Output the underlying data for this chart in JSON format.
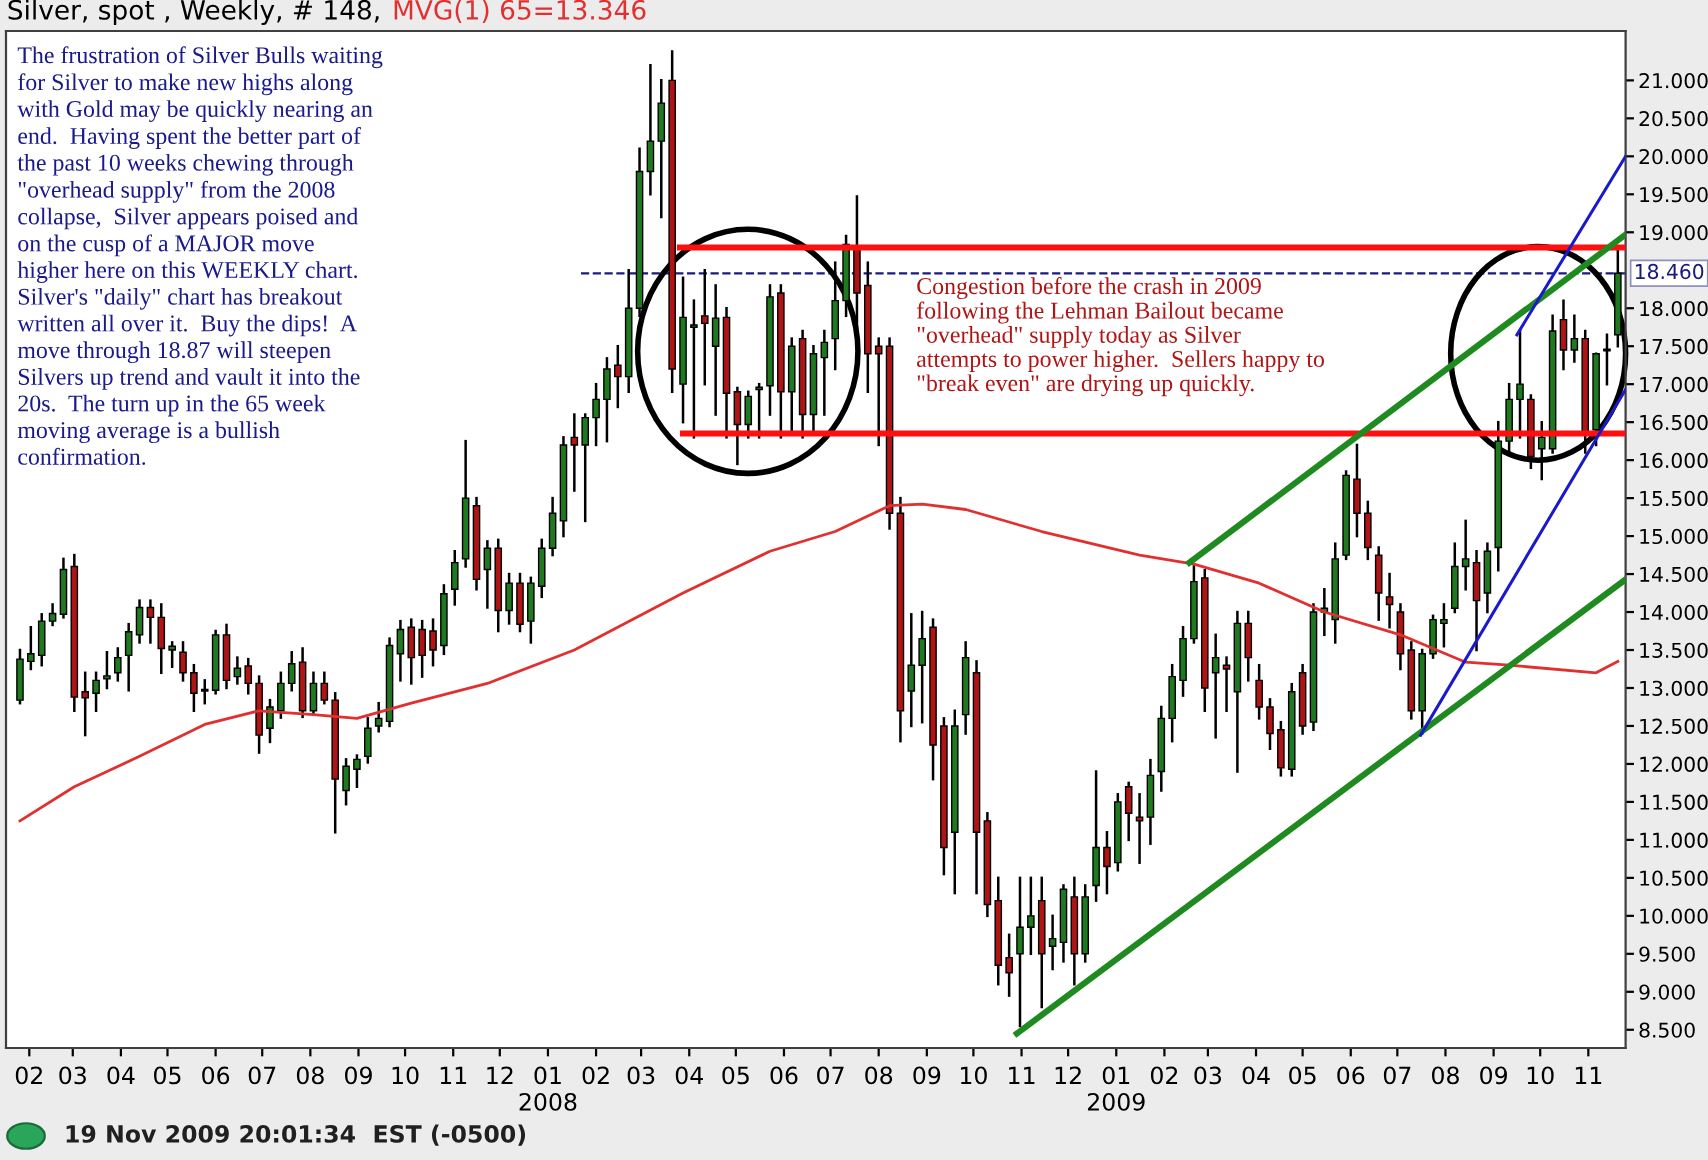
{
  "chart_data": {
    "type": "candlestick",
    "title": "Silver, spot , Weekly, # 148,",
    "x": [
      "2007-01-26",
      "2007-02-02",
      "2007-02-09",
      "2007-02-16",
      "2007-02-23",
      "2007-03-02",
      "2007-03-09",
      "2007-03-16",
      "2007-03-23",
      "2007-03-30",
      "2007-04-06",
      "2007-04-13",
      "2007-04-20",
      "2007-04-27",
      "2007-05-04",
      "2007-05-11",
      "2007-05-18",
      "2007-05-25",
      "2007-06-01",
      "2007-06-08",
      "2007-06-15",
      "2007-06-22",
      "2007-06-29",
      "2007-07-06",
      "2007-07-13",
      "2007-07-20",
      "2007-07-27",
      "2007-08-03",
      "2007-08-10",
      "2007-08-17",
      "2007-08-24",
      "2007-08-31",
      "2007-09-07",
      "2007-09-14",
      "2007-09-21",
      "2007-09-28",
      "2007-10-05",
      "2007-10-12",
      "2007-10-19",
      "2007-10-26",
      "2007-11-02",
      "2007-11-09",
      "2007-11-16",
      "2007-11-23",
      "2007-11-30",
      "2007-12-07",
      "2007-12-14",
      "2007-12-21",
      "2007-12-28",
      "2008-01-04",
      "2008-01-11",
      "2008-01-18",
      "2008-01-25",
      "2008-02-01",
      "2008-02-08",
      "2008-02-15",
      "2008-02-22",
      "2008-02-29",
      "2008-03-07",
      "2008-03-14",
      "2008-03-21",
      "2008-03-28",
      "2008-04-04",
      "2008-04-11",
      "2008-04-18",
      "2008-04-25",
      "2008-05-02",
      "2008-05-09",
      "2008-05-16",
      "2008-05-23",
      "2008-05-30",
      "2008-06-06",
      "2008-06-13",
      "2008-06-20",
      "2008-06-27",
      "2008-07-04",
      "2008-07-11",
      "2008-07-18",
      "2008-07-25",
      "2008-08-01",
      "2008-08-08",
      "2008-08-15",
      "2008-08-22",
      "2008-08-29",
      "2008-09-05",
      "2008-09-12",
      "2008-09-19",
      "2008-09-26",
      "2008-10-03",
      "2008-10-10",
      "2008-10-17",
      "2008-10-24",
      "2008-10-31",
      "2008-11-07",
      "2008-11-14",
      "2008-11-21",
      "2008-11-28",
      "2008-12-05",
      "2008-12-12",
      "2008-12-19",
      "2008-12-26",
      "2009-01-02",
      "2009-01-09",
      "2009-01-16",
      "2009-01-23",
      "2009-01-30",
      "2009-02-06",
      "2009-02-13",
      "2009-02-20",
      "2009-02-27",
      "2009-03-06",
      "2009-03-13",
      "2009-03-20",
      "2009-03-27",
      "2009-04-03",
      "2009-04-10",
      "2009-04-17",
      "2009-04-24",
      "2009-05-01",
      "2009-05-08",
      "2009-05-15",
      "2009-05-22",
      "2009-05-29",
      "2009-06-05",
      "2009-06-12",
      "2009-06-19",
      "2009-06-26",
      "2009-07-03",
      "2009-07-10",
      "2009-07-17",
      "2009-07-24",
      "2009-07-31",
      "2009-08-07",
      "2009-08-14",
      "2009-08-21",
      "2009-08-28",
      "2009-09-04",
      "2009-09-11",
      "2009-09-18",
      "2009-09-25",
      "2009-10-02",
      "2009-10-09",
      "2009-10-16",
      "2009-10-23",
      "2009-10-30",
      "2009-11-06",
      "2009-11-13",
      "2009-11-20"
    ],
    "ohlc": [
      [
        12.84,
        13.5,
        12.8,
        13.38
      ],
      [
        13.35,
        13.8,
        13.25,
        13.45
      ],
      [
        13.43,
        13.97,
        13.3,
        13.88
      ],
      [
        13.88,
        14.1,
        13.83,
        13.98
      ],
      [
        13.97,
        14.7,
        13.93,
        14.56
      ],
      [
        14.6,
        14.75,
        12.7,
        12.88
      ],
      [
        12.95,
        13.2,
        12.38,
        12.87
      ],
      [
        12.93,
        13.2,
        12.7,
        13.1
      ],
      [
        13.12,
        13.47,
        13.0,
        13.16
      ],
      [
        13.2,
        13.52,
        13.1,
        13.4
      ],
      [
        13.43,
        13.84,
        12.97,
        13.74
      ],
      [
        13.7,
        14.15,
        13.6,
        14.06
      ],
      [
        14.06,
        14.15,
        13.6,
        13.93
      ],
      [
        13.93,
        14.1,
        13.2,
        13.52
      ],
      [
        13.5,
        13.6,
        13.28,
        13.55
      ],
      [
        13.47,
        13.6,
        13.1,
        13.2
      ],
      [
        13.2,
        13.3,
        12.7,
        12.93
      ],
      [
        12.98,
        13.1,
        12.8,
        12.96
      ],
      [
        12.97,
        13.75,
        12.93,
        13.7
      ],
      [
        13.7,
        13.83,
        13.0,
        13.1
      ],
      [
        13.15,
        13.4,
        13.06,
        13.26
      ],
      [
        13.29,
        13.38,
        12.93,
        13.06
      ],
      [
        13.06,
        13.15,
        12.15,
        12.38
      ],
      [
        12.47,
        12.84,
        12.29,
        12.75
      ],
      [
        12.7,
        13.2,
        12.61,
        13.06
      ],
      [
        13.06,
        13.47,
        12.97,
        13.32
      ],
      [
        13.34,
        13.52,
        12.62,
        12.7
      ],
      [
        12.7,
        13.2,
        12.65,
        13.06
      ],
      [
        13.06,
        13.2,
        12.8,
        12.84
      ],
      [
        12.84,
        12.93,
        11.1,
        11.8
      ],
      [
        11.65,
        12.06,
        11.47,
        11.97
      ],
      [
        11.93,
        12.11,
        11.7,
        12.06
      ],
      [
        12.1,
        12.6,
        12.02,
        12.47
      ],
      [
        12.5,
        12.8,
        12.43,
        12.6
      ],
      [
        12.56,
        13.65,
        12.5,
        13.56
      ],
      [
        13.45,
        13.88,
        13.1,
        13.77
      ],
      [
        13.8,
        13.9,
        13.06,
        13.4
      ],
      [
        13.77,
        13.88,
        13.15,
        13.43
      ],
      [
        13.75,
        13.9,
        13.3,
        13.5
      ],
      [
        13.56,
        14.35,
        13.45,
        14.24
      ],
      [
        14.3,
        14.8,
        14.1,
        14.65
      ],
      [
        14.7,
        16.25,
        14.6,
        15.5
      ],
      [
        15.4,
        15.5,
        14.3,
        14.43
      ],
      [
        14.56,
        14.93,
        14.06,
        14.84
      ],
      [
        14.84,
        14.95,
        13.75,
        14.02
      ],
      [
        14.02,
        14.5,
        13.85,
        14.38
      ],
      [
        14.38,
        14.5,
        13.75,
        13.84
      ],
      [
        13.88,
        14.45,
        13.6,
        14.38
      ],
      [
        14.34,
        14.95,
        14.2,
        14.84
      ],
      [
        14.84,
        15.5,
        14.75,
        15.3
      ],
      [
        15.2,
        16.3,
        15.0,
        16.2
      ],
      [
        16.3,
        16.6,
        15.6,
        16.2
      ],
      [
        16.2,
        16.6,
        15.2,
        16.56
      ],
      [
        16.56,
        17.0,
        16.2,
        16.8
      ],
      [
        16.8,
        17.34,
        16.25,
        17.2
      ],
      [
        17.25,
        17.5,
        16.7,
        17.1
      ],
      [
        17.1,
        18.5,
        16.9,
        18.0
      ],
      [
        18.0,
        20.1,
        17.9,
        19.8
      ],
      [
        19.8,
        21.2,
        19.5,
        20.2
      ],
      [
        20.2,
        21.0,
        19.2,
        20.7
      ],
      [
        21.0,
        21.38,
        16.9,
        17.2
      ],
      [
        17.0,
        18.4,
        16.5,
        17.88
      ],
      [
        17.75,
        18.1,
        16.3,
        17.78
      ],
      [
        17.9,
        18.5,
        17.0,
        17.8
      ],
      [
        17.5,
        18.3,
        16.6,
        17.87
      ],
      [
        17.88,
        18.0,
        16.3,
        16.88
      ],
      [
        16.9,
        16.95,
        15.95,
        16.47
      ],
      [
        16.47,
        16.9,
        16.3,
        16.84
      ],
      [
        16.93,
        17.0,
        16.3,
        16.96
      ],
      [
        16.98,
        18.3,
        16.6,
        18.15
      ],
      [
        18.2,
        18.3,
        16.3,
        16.9
      ],
      [
        16.9,
        17.6,
        16.4,
        17.5
      ],
      [
        17.6,
        17.7,
        16.3,
        16.6
      ],
      [
        16.6,
        17.5,
        16.35,
        17.4
      ],
      [
        17.35,
        17.7,
        16.6,
        17.55
      ],
      [
        17.6,
        18.6,
        17.2,
        18.1
      ],
      [
        18.1,
        18.95,
        17.9,
        18.84
      ],
      [
        18.8,
        19.47,
        17.75,
        18.2
      ],
      [
        18.3,
        18.6,
        16.9,
        17.4
      ],
      [
        17.5,
        17.6,
        16.2,
        17.4
      ],
      [
        17.5,
        17.6,
        15.1,
        15.3
      ],
      [
        15.3,
        15.5,
        12.3,
        12.7
      ],
      [
        12.96,
        13.97,
        12.5,
        13.3
      ],
      [
        13.3,
        14.0,
        12.55,
        13.65
      ],
      [
        13.8,
        13.9,
        11.8,
        12.25
      ],
      [
        12.5,
        12.6,
        10.55,
        10.9
      ],
      [
        11.1,
        12.7,
        10.3,
        12.5
      ],
      [
        12.65,
        13.6,
        12.4,
        13.4
      ],
      [
        13.2,
        13.35,
        10.3,
        11.1
      ],
      [
        11.25,
        11.35,
        10.0,
        10.15
      ],
      [
        10.2,
        10.5,
        9.1,
        9.35
      ],
      [
        9.45,
        9.75,
        8.95,
        9.25
      ],
      [
        9.5,
        10.5,
        8.55,
        9.85
      ],
      [
        9.85,
        10.5,
        9.5,
        10.0
      ],
      [
        10.2,
        10.5,
        8.8,
        9.5
      ],
      [
        9.6,
        10.0,
        9.3,
        9.7
      ],
      [
        9.65,
        10.4,
        9.4,
        10.35
      ],
      [
        10.25,
        10.5,
        9.1,
        9.5
      ],
      [
        9.5,
        10.4,
        9.4,
        10.25
      ],
      [
        10.4,
        11.9,
        10.2,
        10.9
      ],
      [
        10.9,
        11.1,
        10.3,
        10.65
      ],
      [
        10.7,
        11.6,
        10.6,
        11.5
      ],
      [
        11.7,
        11.75,
        11.0,
        11.35
      ],
      [
        11.3,
        11.6,
        10.7,
        11.25
      ],
      [
        11.3,
        12.05,
        10.95,
        11.85
      ],
      [
        11.9,
        12.75,
        11.65,
        12.6
      ],
      [
        12.6,
        13.3,
        12.3,
        13.15
      ],
      [
        13.1,
        13.8,
        12.9,
        13.65
      ],
      [
        13.65,
        14.6,
        13.6,
        14.4
      ],
      [
        14.45,
        14.55,
        12.7,
        13.0
      ],
      [
        13.2,
        13.7,
        12.35,
        13.4
      ],
      [
        13.3,
        13.4,
        12.7,
        13.25
      ],
      [
        12.95,
        14.0,
        11.9,
        13.85
      ],
      [
        13.85,
        14.0,
        13.1,
        13.4
      ],
      [
        13.1,
        13.3,
        12.6,
        12.75
      ],
      [
        12.75,
        12.85,
        12.2,
        12.4
      ],
      [
        12.45,
        12.55,
        11.85,
        11.95
      ],
      [
        11.93,
        13.05,
        11.85,
        12.95
      ],
      [
        13.2,
        13.3,
        12.4,
        12.5
      ],
      [
        12.55,
        14.1,
        12.45,
        14.0
      ],
      [
        14.0,
        14.3,
        13.7,
        14.05
      ],
      [
        13.9,
        14.9,
        13.6,
        14.7
      ],
      [
        14.75,
        15.85,
        14.7,
        15.8
      ],
      [
        15.75,
        16.2,
        15.0,
        15.3
      ],
      [
        15.3,
        15.45,
        14.7,
        14.85
      ],
      [
        14.75,
        14.85,
        13.9,
        14.25
      ],
      [
        14.2,
        14.5,
        13.8,
        14.1
      ],
      [
        14.0,
        14.1,
        13.25,
        13.45
      ],
      [
        13.5,
        13.6,
        12.6,
        12.7
      ],
      [
        12.7,
        13.5,
        12.4,
        13.45
      ],
      [
        13.45,
        13.95,
        13.4,
        13.9
      ],
      [
        13.85,
        14.1,
        13.55,
        13.9
      ],
      [
        14.05,
        14.9,
        14.0,
        14.6
      ],
      [
        14.6,
        15.2,
        14.3,
        14.7
      ],
      [
        14.65,
        14.8,
        13.5,
        14.15
      ],
      [
        14.25,
        14.9,
        14.0,
        14.8
      ],
      [
        14.85,
        16.5,
        14.55,
        16.25
      ],
      [
        16.25,
        17.0,
        16.1,
        16.8
      ],
      [
        16.8,
        17.7,
        16.3,
        17.0
      ],
      [
        16.8,
        16.85,
        15.9,
        16.05
      ],
      [
        16.15,
        16.5,
        15.75,
        16.3
      ],
      [
        16.15,
        17.9,
        16.1,
        17.7
      ],
      [
        17.85,
        18.1,
        17.2,
        17.45
      ],
      [
        17.45,
        17.9,
        17.3,
        17.6
      ],
      [
        17.6,
        17.7,
        16.1,
        16.35
      ],
      [
        16.4,
        17.4,
        16.2,
        17.4
      ],
      [
        17.45,
        17.65,
        17.0,
        17.44
      ],
      [
        17.65,
        18.8,
        17.5,
        18.46
      ]
    ],
    "series": [
      {
        "type": "line",
        "name": "MVG(1) 65=13.346",
        "color": "#e03030",
        "x": [
          "2007-01-26",
          "2007-03-02",
          "2007-04-13",
          "2007-05-25",
          "2007-06-29",
          "2007-08-03",
          "2007-08-31",
          "2007-10-05",
          "2007-11-23",
          "2008-01-18",
          "2008-03-28",
          "2008-05-23",
          "2008-07-04",
          "2008-08-08",
          "2008-08-29",
          "2008-09-26",
          "2008-11-14",
          "2009-01-16",
          "2009-02-20",
          "2009-04-03",
          "2009-05-15",
          "2009-07-03",
          "2009-08-14",
          "2009-09-11",
          "2009-11-06",
          "2009-11-20"
        ],
        "values": [
          11.25,
          11.7,
          12.1,
          12.52,
          12.7,
          12.65,
          12.6,
          12.8,
          13.06,
          13.5,
          14.25,
          14.8,
          15.06,
          15.4,
          15.42,
          15.35,
          15.06,
          14.75,
          14.63,
          14.38,
          14.0,
          13.7,
          13.34,
          13.3,
          13.2,
          13.35
        ]
      },
      {
        "type": "line",
        "color": "#ff1010",
        "x": [
          "2008-03-26",
          "2009-11-25"
        ],
        "values": [
          18.8,
          18.8
        ]
      },
      {
        "type": "line",
        "color": "#ff1010",
        "x": [
          "2008-03-28",
          "2009-11-25"
        ],
        "values": [
          16.35,
          16.35
        ]
      },
      {
        "type": "line",
        "color": "#1f8a1f",
        "x": [
          "2009-02-17",
          "2009-11-25"
        ],
        "values": [
          14.65,
          18.97
        ]
      },
      {
        "type": "line",
        "color": "#1f8a1f",
        "x": [
          "2008-10-29",
          "2009-11-25"
        ],
        "values": [
          8.45,
          14.43
        ]
      },
      {
        "type": "line",
        "color": "#1a1acc",
        "x": [
          "2009-09-16",
          "2009-11-25"
        ],
        "values": [
          17.65,
          20.0
        ]
      },
      {
        "type": "line",
        "color": "#1a1acc",
        "x": [
          "2009-07-16",
          "2009-11-25"
        ],
        "values": [
          12.38,
          16.93
        ]
      }
    ],
    "ref_lines": [
      {
        "axis": "y",
        "value": 18.46,
        "label": "18.460",
        "color": "#1a1a80",
        "line_style": "dashed"
      }
    ],
    "annotations": [
      "The frustration of Silver Bulls waiting\nfor Silver to make new highs along\nwith Gold may be quickly nearing an\nend.  Having spent the better part of\nthe past 10 weeks chewing through\n\"overhead supply\" from the 2008\ncollapse,  Silver appears poised and\non the cusp of a MAJOR move\nhigher here on this WEEKLY chart.\nSilver's \"daily\" chart has breakout\nwritten all over it.  Buy the dips!  A\nmove through 18.87 will steepen\nSilvers up trend and vault it into the\n20s.  The turn up in the 65 week\nmoving average is a bullish\nconfirmation.",
      "Congestion before the crash in 2009\nfollowing the Lehman Bailout became\n\"overhead\" supply today as Silver\nattempts to power higher.  Sellers happy to\n\"break even\" are drying up quickly.",
      "19 Nov 2009 20:01:34  EST (-0500)"
    ],
    "xlim": [
      "2007-01-17",
      "2009-11-25"
    ],
    "xticks": [
      {
        "value": "2007-02-01",
        "label": "02"
      },
      {
        "value": "2007-03-01",
        "label": "03"
      },
      {
        "value": "2007-04-01",
        "label": "04"
      },
      {
        "value": "2007-05-01",
        "label": "05"
      },
      {
        "value": "2007-06-01",
        "label": "06"
      },
      {
        "value": "2007-07-01",
        "label": "07"
      },
      {
        "value": "2007-08-01",
        "label": "08"
      },
      {
        "value": "2007-09-01",
        "label": "09"
      },
      {
        "value": "2007-10-01",
        "label": "10"
      },
      {
        "value": "2007-11-01",
        "label": "11"
      },
      {
        "value": "2007-12-01",
        "label": "12"
      },
      {
        "value": "2008-01-01",
        "label": "01\n2008"
      },
      {
        "value": "2008-02-01",
        "label": "02"
      },
      {
        "value": "2008-03-01",
        "label": "03"
      },
      {
        "value": "2008-04-01",
        "label": "04"
      },
      {
        "value": "2008-05-01",
        "label": "05"
      },
      {
        "value": "2008-06-01",
        "label": "06"
      },
      {
        "value": "2008-07-01",
        "label": "07"
      },
      {
        "value": "2008-08-01",
        "label": "08"
      },
      {
        "value": "2008-09-01",
        "label": "09"
      },
      {
        "value": "2008-10-01",
        "label": "10"
      },
      {
        "value": "2008-11-01",
        "label": "11"
      },
      {
        "value": "2008-12-01",
        "label": "12"
      },
      {
        "value": "2009-01-01",
        "label": "01\n2009"
      },
      {
        "value": "2009-02-01",
        "label": "02"
      },
      {
        "value": "2009-03-01",
        "label": "03"
      },
      {
        "value": "2009-04-01",
        "label": "04"
      },
      {
        "value": "2009-05-01",
        "label": "05"
      },
      {
        "value": "2009-06-01",
        "label": "06"
      },
      {
        "value": "2009-07-01",
        "label": "07"
      },
      {
        "value": "2009-08-01",
        "label": "08"
      },
      {
        "value": "2009-09-01",
        "label": "09"
      },
      {
        "value": "2009-10-01",
        "label": "10"
      },
      {
        "value": "2009-11-01",
        "label": "11"
      }
    ],
    "ylim": [
      8.26,
      21.65
    ],
    "yticks": [
      {
        "value": 8.5,
        "label": "8.500"
      },
      {
        "value": 9,
        "label": "9.000"
      },
      {
        "value": 9.5,
        "label": "9.500"
      },
      {
        "value": 10,
        "label": "10.000"
      },
      {
        "value": 10.5,
        "label": "10.500"
      },
      {
        "value": 11,
        "label": "11.000"
      },
      {
        "value": 11.5,
        "label": "11.500"
      },
      {
        "value": 12,
        "label": "12.000"
      },
      {
        "value": 12.5,
        "label": "12.500"
      },
      {
        "value": 13,
        "label": "13.000"
      },
      {
        "value": 13.5,
        "label": "13.500"
      },
      {
        "value": 14,
        "label": "14.000"
      },
      {
        "value": 14.5,
        "label": "14.500"
      },
      {
        "value": 15,
        "label": "15.000"
      },
      {
        "value": 15.5,
        "label": "15.500"
      },
      {
        "value": 16,
        "label": "16.000"
      },
      {
        "value": 16.5,
        "label": "16.500"
      },
      {
        "value": 17,
        "label": "17.000"
      },
      {
        "value": 17.5,
        "label": "17.500"
      },
      {
        "value": 18,
        "label": "18.000"
      },
      {
        "value": 19,
        "label": "19.000"
      },
      {
        "value": 19.5,
        "label": "19.500"
      },
      {
        "value": 20,
        "label": "20.000"
      },
      {
        "value": 20.5,
        "label": "20.500"
      },
      {
        "value": 21,
        "label": "21.000"
      }
    ],
    "grid": false
  }
}
